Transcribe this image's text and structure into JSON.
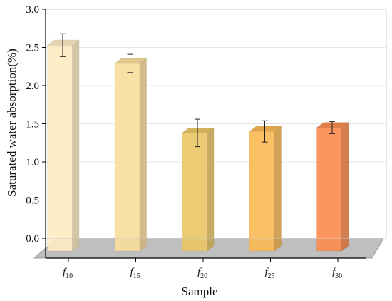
{
  "chart_data": {
    "type": "bar",
    "xlabel": "Sample",
    "ylabel": "Saturated water absorption(%)",
    "ylim": [
      0,
      3.0
    ],
    "yticks": [
      "0.0",
      "0.5",
      "1.0",
      "1.5",
      "2.0",
      "2.5",
      "3.0"
    ],
    "grid": true,
    "categories": [
      {
        "base": "f",
        "sub": "10"
      },
      {
        "base": "f",
        "sub": "15"
      },
      {
        "base": "f",
        "sub": "20"
      },
      {
        "base": "f",
        "sub": "25"
      },
      {
        "base": "f",
        "sub": "30"
      }
    ],
    "values": [
      2.53,
      2.29,
      1.38,
      1.4,
      1.45
    ],
    "errors": [
      0.15,
      0.12,
      0.18,
      0.14,
      0.08
    ],
    "colors": [
      "#FDEBC2",
      "#F8DD9B",
      "#E9C565",
      "#FBB952",
      "#FA8B4D"
    ],
    "floor_color": "#BFBFBF"
  }
}
